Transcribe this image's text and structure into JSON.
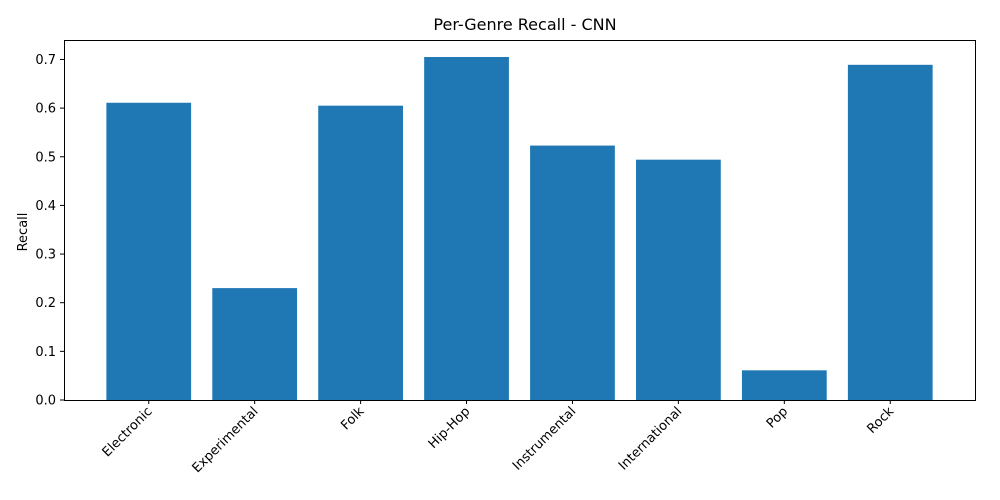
{
  "chart_data": {
    "type": "bar",
    "title": "Per-Genre Recall - CNN",
    "xlabel": "",
    "ylabel": "Recall",
    "categories": [
      "Electronic",
      "Experimental",
      "Folk",
      "Hip-Hop",
      "Instrumental",
      "International",
      "Pop",
      "Rock"
    ],
    "values": [
      0.611,
      0.23,
      0.605,
      0.705,
      0.523,
      0.494,
      0.061,
      0.689
    ],
    "ylim": [
      0,
      0.74
    ],
    "yticks": [
      "0.0",
      "0.1",
      "0.2",
      "0.3",
      "0.4",
      "0.5",
      "0.6",
      "0.7"
    ],
    "bar_color": "#1f77b4",
    "grid": false
  }
}
